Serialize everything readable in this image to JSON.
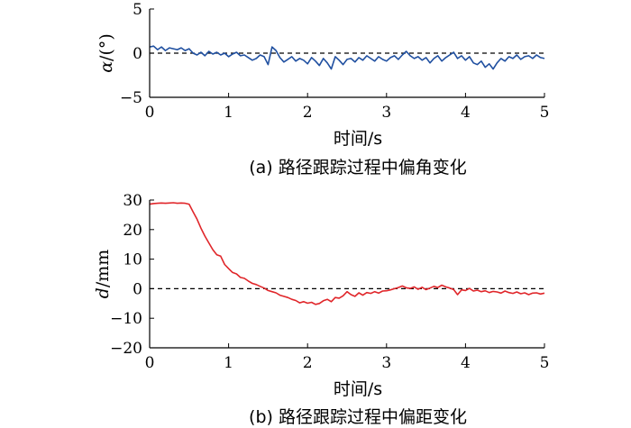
{
  "chart_data": [
    {
      "type": "line",
      "ylabel_var": "α",
      "ylabel_unit": "/(°)",
      "xlabel": "时间/s",
      "caption": "(a)  路径跟踪过程中偏角变化",
      "xlim": [
        0,
        5
      ],
      "ylim": [
        -5,
        5
      ],
      "xticks": [
        0,
        1,
        2,
        3,
        4,
        5
      ],
      "yticks": [
        -5,
        0,
        5
      ],
      "reference_line": 0,
      "color": "#1f4fa0",
      "series": [
        {
          "x": [
            0,
            0.05,
            0.1,
            0.15,
            0.2,
            0.25,
            0.3,
            0.35,
            0.4,
            0.45,
            0.5,
            0.55,
            0.6,
            0.65,
            0.7,
            0.75,
            0.8,
            0.85,
            0.9,
            0.95,
            1.0,
            1.05,
            1.1,
            1.15,
            1.2,
            1.25,
            1.3,
            1.35,
            1.4,
            1.45,
            1.5,
            1.55,
            1.6,
            1.65,
            1.7,
            1.75,
            1.8,
            1.85,
            1.9,
            1.95,
            2.0,
            2.05,
            2.1,
            2.15,
            2.2,
            2.25,
            2.3,
            2.35,
            2.4,
            2.45,
            2.5,
            2.55,
            2.6,
            2.65,
            2.7,
            2.75,
            2.8,
            2.85,
            2.9,
            2.95,
            3.0,
            3.05,
            3.1,
            3.15,
            3.2,
            3.25,
            3.3,
            3.35,
            3.4,
            3.45,
            3.5,
            3.55,
            3.6,
            3.65,
            3.7,
            3.75,
            3.8,
            3.85,
            3.9,
            3.95,
            4.0,
            4.05,
            4.1,
            4.15,
            4.2,
            4.25,
            4.3,
            4.35,
            4.4,
            4.45,
            4.5,
            4.55,
            4.6,
            4.65,
            4.7,
            4.75,
            4.8,
            4.85,
            4.9,
            4.95,
            5.0
          ],
          "y": [
            0.7,
            0.8,
            0.4,
            0.7,
            0.3,
            0.6,
            0.5,
            0.4,
            0.6,
            0.3,
            0.5,
            0.0,
            -0.2,
            0.1,
            -0.3,
            0.2,
            -0.1,
            0.1,
            -0.2,
            0.0,
            -0.4,
            -0.1,
            0.1,
            -0.3,
            -0.2,
            -0.5,
            -0.8,
            -0.6,
            -0.2,
            -0.4,
            -1.3,
            0.7,
            0.3,
            -0.5,
            -1.0,
            -0.7,
            -0.4,
            -0.9,
            -0.6,
            -0.8,
            -1.2,
            -0.5,
            -0.9,
            -1.4,
            -0.6,
            -1.1,
            -1.8,
            -0.4,
            -0.8,
            -1.3,
            -0.7,
            -0.6,
            -1.0,
            -0.5,
            -0.8,
            -0.3,
            -0.6,
            -0.9,
            -0.4,
            -0.7,
            -0.9,
            -0.5,
            -0.3,
            -0.7,
            -0.2,
            0.2,
            -0.3,
            -0.6,
            -0.4,
            -0.8,
            -0.5,
            -1.1,
            -0.6,
            -0.3,
            -0.9,
            -0.5,
            -0.2,
            0.1,
            -0.6,
            -0.3,
            -0.8,
            -0.4,
            -1.1,
            -1.3,
            -0.9,
            -1.6,
            -1.2,
            -1.8,
            -1.1,
            -0.6,
            -0.9,
            -0.4,
            -0.6,
            -0.2,
            -0.7,
            -0.4,
            -0.3,
            -0.6,
            -0.2,
            -0.5,
            -0.6
          ]
        }
      ]
    },
    {
      "type": "line",
      "ylabel_var": "d",
      "ylabel_unit": "/mm",
      "xlabel": "时间/s",
      "caption": "(b)  路径跟踪过程中偏距变化",
      "xlim": [
        0,
        5
      ],
      "ylim": [
        -20,
        30
      ],
      "xticks": [
        0,
        1,
        2,
        3,
        4,
        5
      ],
      "yticks": [
        -20,
        -10,
        0,
        10,
        20,
        30
      ],
      "reference_line": 0,
      "color": "#e0262a",
      "series": [
        {
          "x": [
            0,
            0.05,
            0.1,
            0.15,
            0.2,
            0.25,
            0.3,
            0.35,
            0.4,
            0.45,
            0.5,
            0.55,
            0.6,
            0.65,
            0.7,
            0.75,
            0.8,
            0.85,
            0.9,
            0.95,
            1.0,
            1.05,
            1.1,
            1.15,
            1.2,
            1.25,
            1.3,
            1.35,
            1.4,
            1.45,
            1.5,
            1.55,
            1.6,
            1.65,
            1.7,
            1.75,
            1.8,
            1.85,
            1.9,
            1.95,
            2.0,
            2.05,
            2.1,
            2.15,
            2.2,
            2.25,
            2.3,
            2.35,
            2.4,
            2.45,
            2.5,
            2.55,
            2.6,
            2.65,
            2.7,
            2.75,
            2.8,
            2.85,
            2.9,
            2.95,
            3.0,
            3.05,
            3.1,
            3.15,
            3.2,
            3.25,
            3.3,
            3.35,
            3.4,
            3.45,
            3.5,
            3.55,
            3.6,
            3.65,
            3.7,
            3.75,
            3.8,
            3.85,
            3.9,
            3.95,
            4.0,
            4.05,
            4.1,
            4.15,
            4.2,
            4.25,
            4.3,
            4.35,
            4.4,
            4.45,
            4.5,
            4.55,
            4.6,
            4.65,
            4.7,
            4.75,
            4.8,
            4.85,
            4.9,
            4.95,
            5.0
          ],
          "y": [
            28.6,
            28.8,
            28.9,
            29.0,
            28.9,
            29.0,
            29.1,
            28.9,
            29.0,
            28.9,
            28.6,
            26.0,
            23.5,
            20.5,
            17.8,
            15.5,
            13.2,
            11.5,
            11.0,
            8.2,
            6.8,
            5.5,
            5.0,
            3.8,
            3.5,
            2.6,
            1.8,
            1.4,
            0.8,
            0.2,
            -0.6,
            -1.0,
            -1.4,
            -2.2,
            -2.6,
            -3.0,
            -3.6,
            -4.0,
            -4.8,
            -4.4,
            -4.9,
            -4.6,
            -5.3,
            -5.0,
            -4.1,
            -3.6,
            -4.4,
            -3.0,
            -3.2,
            -2.4,
            -1.0,
            -2.0,
            -2.6,
            -1.4,
            -2.2,
            -1.3,
            -1.6,
            -1.0,
            -1.5,
            -0.8,
            -0.7,
            -0.4,
            0.0,
            0.4,
            0.9,
            0.3,
            0.1,
            0.6,
            -0.2,
            0.5,
            -0.3,
            0.2,
            0.8,
            0.4,
            1.2,
            0.6,
            0.2,
            -0.3,
            -2.0,
            -0.4,
            -0.6,
            0.1,
            -0.8,
            -0.5,
            -1.0,
            -0.7,
            -1.3,
            -0.9,
            -1.1,
            -1.5,
            -0.8,
            -1.3,
            -1.6,
            -1.1,
            -1.7,
            -1.4,
            -2.0,
            -1.5,
            -1.4,
            -1.8,
            -1.5
          ]
        }
      ]
    }
  ]
}
